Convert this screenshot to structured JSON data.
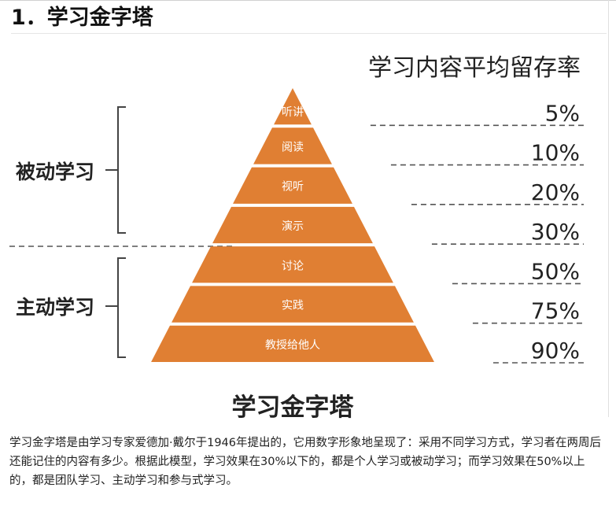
{
  "section_heading": "1．学习金字塔",
  "diagram": {
    "retention_header": "学习内容平均留存率",
    "caption": "学习金字塔",
    "passive_group_label": "被动学习",
    "active_group_label": "主动学习",
    "colors": {
      "pyramid_fill": "#E07F33",
      "level_text": "#ffffff",
      "dashed_line": "#555555",
      "text": "#222222"
    },
    "levels": [
      {
        "label": "听讲",
        "retention": "5%"
      },
      {
        "label": "阅读",
        "retention": "10%"
      },
      {
        "label": "视听",
        "retention": "20%"
      },
      {
        "label": "演示",
        "retention": "30%"
      },
      {
        "label": "讨论",
        "retention": "50%"
      },
      {
        "label": "实践",
        "retention": "75%"
      },
      {
        "label": "教授给他人",
        "retention": "90%"
      }
    ]
  },
  "description": "学习金字塔是由学习专家爱德加·戴尔于1946年提出的，它用数字形象地呈现了：采用不同学习方式，学习者在两周后还能记住的内容有多少。根据此模型，学习效果在30%以下的，都是个人学习或被动学习；而学习效果在50%以上的，都是团队学习、主动学习和参与式学习。"
}
